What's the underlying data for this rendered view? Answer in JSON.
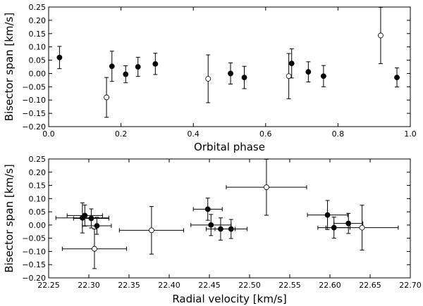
{
  "chart_data": [
    {
      "type": "scatter",
      "xlabel": "Orbital phase",
      "ylabel": "Bisector span [km/s]",
      "xlim": [
        0.0,
        1.0
      ],
      "ylim": [
        -0.2,
        0.25
      ],
      "xticks": [
        "0.0",
        "0.2",
        "0.4",
        "0.6",
        "0.8",
        "1.0"
      ],
      "yticks": [
        "−0.20",
        "−0.15",
        "−0.10",
        "−0.05",
        "0.00",
        "0.05",
        "0.10",
        "0.15",
        "0.20",
        "0.25"
      ],
      "grid": false,
      "series": [
        {
          "name": "filled",
          "marker": "filled-circle",
          "points": [
            {
              "x": 0.03,
              "y": 0.06,
              "yerr": 0.042
            },
            {
              "x": 0.175,
              "y": 0.027,
              "yerr": 0.057
            },
            {
              "x": 0.213,
              "y": -0.003,
              "yerr": 0.032
            },
            {
              "x": 0.247,
              "y": 0.025,
              "yerr": 0.036
            },
            {
              "x": 0.295,
              "y": 0.036,
              "yerr": 0.04
            },
            {
              "x": 0.503,
              "y": 0.0,
              "yerr": 0.04
            },
            {
              "x": 0.541,
              "y": -0.015,
              "yerr": 0.042
            },
            {
              "x": 0.672,
              "y": 0.038,
              "yerr": 0.055
            },
            {
              "x": 0.718,
              "y": 0.006,
              "yerr": 0.038
            },
            {
              "x": 0.76,
              "y": -0.01,
              "yerr": 0.04
            },
            {
              "x": 0.963,
              "y": -0.015,
              "yerr": 0.036
            }
          ]
        },
        {
          "name": "open",
          "marker": "open-circle",
          "points": [
            {
              "x": 0.16,
              "y": -0.09,
              "yerr": 0.075
            },
            {
              "x": 0.441,
              "y": -0.02,
              "yerr": 0.09
            },
            {
              "x": 0.664,
              "y": -0.01,
              "yerr": 0.085
            },
            {
              "x": 0.918,
              "y": 0.143,
              "yerr": 0.106
            }
          ]
        }
      ]
    },
    {
      "type": "scatter",
      "xlabel": "Radial velocity [km/s]",
      "ylabel": "Bisector span [km/s]",
      "xlim": [
        22.25,
        22.7
      ],
      "ylim": [
        -0.2,
        0.25
      ],
      "xticks": [
        "22.25",
        "22.30",
        "22.35",
        "22.40",
        "22.45",
        "22.50",
        "22.55",
        "22.60",
        "22.65",
        "22.70"
      ],
      "yticks": [
        "−0.20",
        "−0.15",
        "−0.10",
        "−0.05",
        "0.00",
        "0.05",
        "0.10",
        "0.15",
        "0.20",
        "0.25"
      ],
      "grid": false,
      "series": [
        {
          "name": "filled",
          "marker": "filled-circle",
          "points": [
            {
              "x": 22.292,
              "y": 0.027,
              "xerr": 0.033,
              "yerr": 0.057
            },
            {
              "x": 22.295,
              "y": 0.036,
              "xerr": 0.022,
              "yerr": 0.04
            },
            {
              "x": 22.303,
              "y": 0.025,
              "xerr": 0.022,
              "yerr": 0.036
            },
            {
              "x": 22.31,
              "y": -0.003,
              "xerr": 0.018,
              "yerr": 0.032
            },
            {
              "x": 22.448,
              "y": 0.06,
              "xerr": 0.018,
              "yerr": 0.042
            },
            {
              "x": 22.452,
              "y": 0.0,
              "xerr": 0.025,
              "yerr": 0.04
            },
            {
              "x": 22.464,
              "y": -0.015,
              "xerr": 0.018,
              "yerr": 0.042
            },
            {
              "x": 22.477,
              "y": -0.015,
              "xerr": 0.02,
              "yerr": 0.036
            },
            {
              "x": 22.597,
              "y": 0.038,
              "xerr": 0.025,
              "yerr": 0.055
            },
            {
              "x": 22.605,
              "y": -0.01,
              "xerr": 0.02,
              "yerr": 0.04
            },
            {
              "x": 22.623,
              "y": 0.006,
              "xerr": 0.018,
              "yerr": 0.038
            }
          ]
        },
        {
          "name": "open",
          "marker": "open-circle",
          "points": [
            {
              "x": 22.307,
              "y": -0.09,
              "xerr": 0.04,
              "yerr": 0.075
            },
            {
              "x": 22.378,
              "y": -0.02,
              "xerr": 0.04,
              "yerr": 0.09
            },
            {
              "x": 22.521,
              "y": 0.143,
              "xerr": 0.05,
              "yerr": 0.106
            },
            {
              "x": 22.64,
              "y": -0.01,
              "xerr": 0.045,
              "yerr": 0.085
            }
          ]
        }
      ]
    }
  ]
}
